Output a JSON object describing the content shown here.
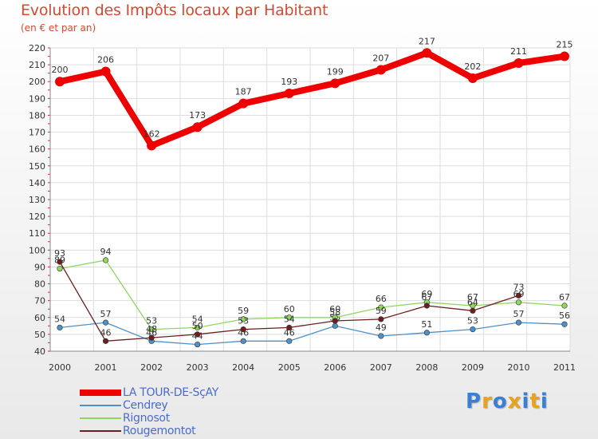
{
  "chart_data": {
    "type": "line",
    "title": "Evolution des Impôts locaux par Habitant",
    "subtitle": "(en € et par an)",
    "categories": [
      "2000",
      "2001",
      "2002",
      "2003",
      "2004",
      "2005",
      "2006",
      "2007",
      "2008",
      "2009",
      "2010",
      "2011"
    ],
    "ylim": [
      40,
      220
    ],
    "yticks": [
      40,
      50,
      60,
      70,
      80,
      90,
      100,
      110,
      120,
      130,
      140,
      150,
      160,
      170,
      180,
      190,
      200,
      210,
      220
    ],
    "grid": true,
    "series": [
      {
        "name": "LA TOUR-DE-SçAY",
        "color": "#ee0000",
        "values": [
          200,
          206,
          162,
          173,
          187,
          193,
          199,
          207,
          217,
          202,
          211,
          215
        ],
        "labels": [
          "200",
          "206",
          "162",
          "173",
          "187",
          "193",
          "199",
          "207",
          "217",
          "202",
          "211",
          "215"
        ],
        "thick": true
      },
      {
        "name": "Cendrey",
        "color": "#4f90c7",
        "values": [
          54,
          57,
          46,
          44,
          46,
          46,
          55,
          49,
          51,
          53,
          57,
          56
        ],
        "labels": [
          "54",
          "57",
          "46",
          "44",
          "46",
          "46",
          "55",
          "49",
          "51",
          "53",
          "57",
          "56"
        ],
        "thick": false
      },
      {
        "name": "Rignosot",
        "color": "#8fd85f",
        "values": [
          89,
          94,
          53,
          54,
          59,
          60,
          60,
          66,
          69,
          67,
          69,
          67
        ],
        "labels": [
          "89",
          "94",
          "53",
          "54",
          "59",
          "60",
          "60",
          "66",
          "69",
          "67",
          "69",
          "67"
        ],
        "thick": false
      },
      {
        "name": "Rougemontot",
        "color": "#6d1e1e",
        "values": [
          93,
          46,
          48,
          50,
          53,
          54,
          58,
          59,
          67,
          64,
          73,
          null
        ],
        "labels": [
          "93",
          "46",
          "48",
          "50",
          "53",
          "54",
          "58",
          "59",
          "67",
          "64",
          "73",
          null
        ],
        "thick": false
      }
    ]
  },
  "logo": {
    "text": "Proxiti",
    "colors": [
      "#3b7fd4",
      "#e8a21b",
      "#3b7fd4",
      "#e8a21b",
      "#3b7fd4",
      "#e8a21b",
      "#3b7fd4"
    ]
  }
}
